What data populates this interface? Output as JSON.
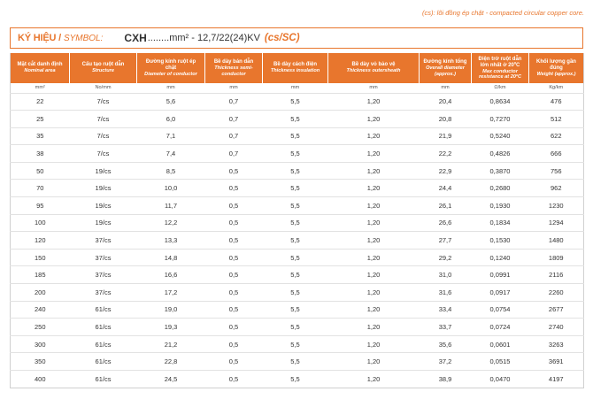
{
  "note": "(cs): lõi đồng ép chặt - compacted circular copper core.",
  "symbol": {
    "label_vi": "KÝ HIỆU /",
    "label_en": "SYMBOL:",
    "code": "CXH",
    "spec": "........mm² - 12,7/22(24)KV",
    "type": "(cs/SC)"
  },
  "headers": [
    {
      "vi": "Mặt cắt danh định",
      "en": "Nominal area"
    },
    {
      "vi": "Cấu tạo ruột dẫn",
      "en": "Structure"
    },
    {
      "vi": "Đường kính ruột ép chặt",
      "en": "Diameter of conductor"
    },
    {
      "vi": "Bề dày bán dẫn",
      "en": "Thickness semi-conductor"
    },
    {
      "vi": "Bề dày cách điện",
      "en": "Thickness insulation"
    },
    {
      "vi": "Bề dày vỏ bảo vệ",
      "en": "Thickness outersheath"
    },
    {
      "vi": "Đường kính tổng",
      "en": "Overall diameter (approx.)"
    },
    {
      "vi": "Điện trở ruột dẫn lớn nhất ở 20ºC",
      "en": "Max conductor resistance at 20ºC"
    },
    {
      "vi": "Khối lượng gần đúng",
      "en": "Weight (approx.)"
    }
  ],
  "units": [
    "mm²",
    "No/mm",
    "mm",
    "mm",
    "mm",
    "mm",
    "mm",
    "Ω/km",
    "Kg/km"
  ],
  "rows": [
    [
      "22",
      "7/cs",
      "5,6",
      "0,7",
      "5,5",
      "1,20",
      "20,4",
      "0,8634",
      "476"
    ],
    [
      "25",
      "7/cs",
      "6,0",
      "0,7",
      "5,5",
      "1,20",
      "20,8",
      "0,7270",
      "512"
    ],
    [
      "35",
      "7/cs",
      "7,1",
      "0,7",
      "5,5",
      "1,20",
      "21,9",
      "0,5240",
      "622"
    ],
    [
      "38",
      "7/cs",
      "7,4",
      "0,7",
      "5,5",
      "1,20",
      "22,2",
      "0,4826",
      "666"
    ],
    [
      "50",
      "19/cs",
      "8,5",
      "0,5",
      "5,5",
      "1,20",
      "22,9",
      "0,3870",
      "756"
    ],
    [
      "70",
      "19/cs",
      "10,0",
      "0,5",
      "5,5",
      "1,20",
      "24,4",
      "0,2680",
      "962"
    ],
    [
      "95",
      "19/cs",
      "11,7",
      "0,5",
      "5,5",
      "1,20",
      "26,1",
      "0,1930",
      "1230"
    ],
    [
      "100",
      "19/cs",
      "12,2",
      "0,5",
      "5,5",
      "1,20",
      "26,6",
      "0,1834",
      "1294"
    ],
    [
      "120",
      "37/cs",
      "13,3",
      "0,5",
      "5,5",
      "1,20",
      "27,7",
      "0,1530",
      "1480"
    ],
    [
      "150",
      "37/cs",
      "14,8",
      "0,5",
      "5,5",
      "1,20",
      "29,2",
      "0,1240",
      "1809"
    ],
    [
      "185",
      "37/cs",
      "16,6",
      "0,5",
      "5,5",
      "1,20",
      "31,0",
      "0,0991",
      "2116"
    ],
    [
      "200",
      "37/cs",
      "17,2",
      "0,5",
      "5,5",
      "1,20",
      "31,6",
      "0,0917",
      "2260"
    ],
    [
      "240",
      "61/cs",
      "19,0",
      "0,5",
      "5,5",
      "1,20",
      "33,4",
      "0,0754",
      "2677"
    ],
    [
      "250",
      "61/cs",
      "19,3",
      "0,5",
      "5,5",
      "1,20",
      "33,7",
      "0,0724",
      "2740"
    ],
    [
      "300",
      "61/cs",
      "21,2",
      "0,5",
      "5,5",
      "1,20",
      "35,6",
      "0,0601",
      "3263"
    ],
    [
      "350",
      "61/cs",
      "22,8",
      "0,5",
      "5,5",
      "1,20",
      "37,2",
      "0,0515",
      "3691"
    ],
    [
      "400",
      "61/cs",
      "24,5",
      "0,5",
      "5,5",
      "1,20",
      "38,9",
      "0,0470",
      "4197"
    ]
  ]
}
